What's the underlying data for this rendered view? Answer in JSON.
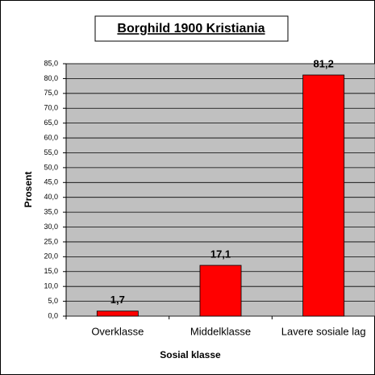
{
  "chart_data": {
    "type": "bar",
    "title": "Borghild 1900 Kristiania",
    "x_label": "Sosial klasse",
    "y_label": "Prosent",
    "categories": [
      "Overklasse",
      "Middelklasse",
      "Lavere sosiale lag"
    ],
    "values": [
      1.7,
      17.1,
      81.2
    ],
    "value_labels": [
      "1,7",
      "17,1",
      "81,2"
    ],
    "color": "#ff0000",
    "ylim": [
      0,
      85
    ],
    "yticks": [
      {
        "value": 0,
        "label": "0,0"
      },
      {
        "value": 5,
        "label": "5,0"
      },
      {
        "value": 10,
        "label": "10,0"
      },
      {
        "value": 15,
        "label": "15,0"
      },
      {
        "value": 20,
        "label": "20,0"
      },
      {
        "value": 25,
        "label": "25,0"
      },
      {
        "value": 30,
        "label": "30,0"
      },
      {
        "value": 35,
        "label": "35,0"
      },
      {
        "value": 40,
        "label": "40,0"
      },
      {
        "value": 45,
        "label": "45,0"
      },
      {
        "value": 50,
        "label": "50,0"
      },
      {
        "value": 55,
        "label": "55,0"
      },
      {
        "value": 60,
        "label": "60,0"
      },
      {
        "value": 65,
        "label": "65,0"
      },
      {
        "value": 70,
        "label": "70,0"
      },
      {
        "value": 75,
        "label": "75,0"
      },
      {
        "value": 80,
        "label": "80,0"
      },
      {
        "value": 85,
        "label": "85,0"
      }
    ],
    "grid": true
  }
}
